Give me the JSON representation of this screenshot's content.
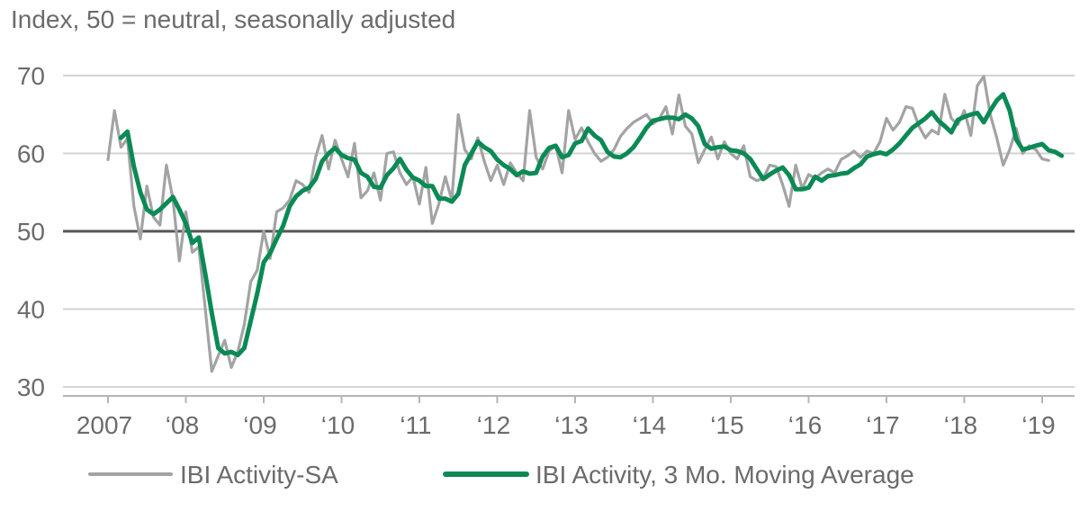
{
  "chart_data": {
    "type": "line",
    "subtitle": "Index, 50 = neutral, seasonally adjusted",
    "xlabel": "",
    "ylabel": "",
    "ylim": [
      30,
      72
    ],
    "yticks": [
      30,
      40,
      50,
      60,
      70
    ],
    "ytick_labels": [
      "30",
      "40",
      "50",
      "60",
      "70"
    ],
    "reference_line": 50,
    "x_start": "2007-01",
    "x_end": "2019-06",
    "xtick_dates": [
      "2007-01",
      "2008-01",
      "2009-01",
      "2010-01",
      "2011-01",
      "2012-01",
      "2013-01",
      "2014-01",
      "2015-01",
      "2016-01",
      "2017-01",
      "2018-01",
      "2019-01"
    ],
    "xtick_labels": [
      "2007",
      "‘08",
      "‘09",
      "‘10",
      "‘11",
      "‘12",
      "‘13",
      "‘14",
      "‘15",
      "‘16",
      "‘17",
      "‘18",
      "‘19"
    ],
    "grid": "horizontal",
    "legend_position": "bottom",
    "series": [
      {
        "name": "IBI Activity-SA",
        "color": "#a3a3a3",
        "start": "2007-01",
        "values": [
          59.2,
          65.5,
          60.8,
          61.9,
          53.2,
          49.0,
          55.8,
          51.8,
          50.8,
          58.5,
          54.2,
          46.2,
          52.5,
          47.3,
          48.0,
          40.0,
          32.0,
          34.0,
          36.0,
          32.5,
          34.5,
          38.0,
          43.5,
          45.0,
          50.0,
          46.5,
          52.5,
          53.0,
          54.0,
          56.5,
          56.0,
          55.0,
          59.5,
          62.3,
          58.0,
          61.7,
          59.3,
          57.0,
          61.3,
          54.3,
          55.2,
          57.5,
          54.0,
          60.0,
          60.2,
          57.5,
          56.0,
          57.0,
          53.5,
          58.2,
          51.0,
          53.5,
          57.0,
          54.0,
          65.0,
          60.5,
          59.3,
          62.0,
          59.0,
          56.5,
          58.5,
          56.0,
          58.8,
          57.5,
          56.5,
          65.5,
          59.5,
          58.0,
          60.3,
          61.0,
          57.5,
          65.5,
          61.8,
          63.3,
          61.5,
          60.0,
          59.0,
          59.5,
          60.5,
          62.2,
          63.2,
          64.0,
          64.5,
          65.0,
          63.8,
          64.5,
          66.0,
          62.5,
          67.5,
          63.5,
          62.5,
          58.8,
          60.5,
          62.1,
          59.3,
          61.5,
          60.0,
          59.3,
          61.0,
          57.0,
          56.5,
          56.8,
          58.5,
          58.3,
          56.0,
          53.2,
          58.5,
          55.5,
          57.3,
          56.8,
          57.5,
          58.0,
          57.5,
          59.2,
          59.7,
          60.3,
          59.5,
          60.3,
          60.0,
          61.5,
          64.5,
          63.0,
          64.0,
          66.0,
          65.8,
          63.5,
          62.0,
          63.0,
          62.5,
          67.6,
          64.5,
          63.7,
          65.5,
          62.3,
          68.7,
          69.9,
          65.0,
          62.0,
          58.5,
          60.5,
          63.2,
          60.0,
          61.0,
          60.5,
          59.3,
          59.1
        ]
      },
      {
        "name": "IBI Activity, 3 Mo. Moving Average",
        "color": "#0a8a55",
        "start": "2007-03",
        "values": [
          62.0,
          62.8,
          58.3,
          55.0,
          52.8,
          52.2,
          52.8,
          53.6,
          54.4,
          52.8,
          51.0,
          48.5,
          49.2,
          44.5,
          39.5,
          35.0,
          34.3,
          34.5,
          34.1,
          35.0,
          38.5,
          42.0,
          46.0,
          47.2,
          49.0,
          50.7,
          53.2,
          54.5,
          55.2,
          55.6,
          56.7,
          59.0,
          60.0,
          60.7,
          59.8,
          59.4,
          59.2,
          57.5,
          57.0,
          55.7,
          55.6,
          57.2,
          58.1,
          59.3,
          57.9,
          56.9,
          56.5,
          55.8,
          55.8,
          54.2,
          54.2,
          53.8,
          54.8,
          58.5,
          60.0,
          61.5,
          60.8,
          60.3,
          59.2,
          58.5,
          58.0,
          57.2,
          57.7,
          57.4,
          57.5,
          59.6,
          60.7,
          61.0,
          59.5,
          59.8,
          61.3,
          61.6,
          63.2,
          62.3,
          61.7,
          60.2,
          59.6,
          59.5,
          60.0,
          60.8,
          62.0,
          63.3,
          64.2,
          64.4,
          64.6,
          64.6,
          64.4,
          65.0,
          64.5,
          63.5,
          61.2,
          60.6,
          60.8,
          60.9,
          60.4,
          60.3,
          60.0,
          59.3,
          58.0,
          56.7,
          57.3,
          57.8,
          58.2,
          57.2,
          55.4,
          55.4,
          55.6,
          57.0,
          56.5,
          57.1,
          57.2,
          57.4,
          57.5,
          58.1,
          58.6,
          59.6,
          59.9,
          60.1,
          59.9,
          60.5,
          61.3,
          62.3,
          63.3,
          63.9,
          64.5,
          65.3,
          64.2,
          63.5,
          62.7,
          64.3,
          64.7,
          65.0,
          65.2,
          64.0,
          65.5,
          66.8,
          67.6,
          65.5,
          61.8,
          60.5,
          60.7,
          61.0,
          61.2,
          60.4,
          60.2,
          59.7
        ]
      }
    ]
  }
}
